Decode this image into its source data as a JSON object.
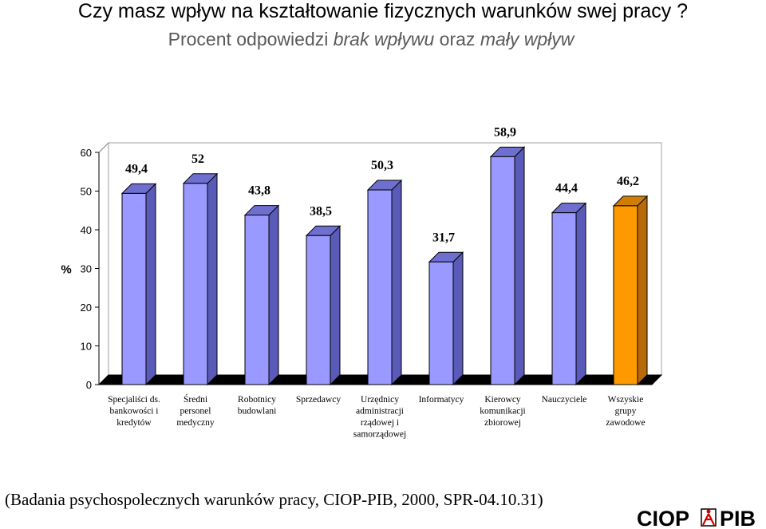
{
  "header": {
    "title": "Czy masz wpływ na kształtowanie fizycznych warunków swej pracy ?",
    "subtitle_prefix": "Procent odpowiedzi ",
    "subtitle_em1": "brak wpływu",
    "subtitle_mid": " oraz ",
    "subtitle_em2": "mały wpływ"
  },
  "chart_data": {
    "type": "bar",
    "title": "Czy masz wpływ na kształtowanie fizycznych warunków swej pracy ?",
    "subtitle": "Procent odpowiedzi brak wpływu oraz mały wpływ",
    "ylabel": "%",
    "xlabel": "",
    "ylim": [
      0,
      60
    ],
    "yticks": [
      0,
      10,
      20,
      30,
      40,
      50,
      60
    ],
    "grid": false,
    "legend": "none",
    "categories": [
      [
        "Specjaliści ds.",
        "bankowości i",
        "kredytów"
      ],
      [
        "Średni",
        "personel",
        "medyczny"
      ],
      [
        "Robotnicy",
        "budowlani"
      ],
      [
        "Sprzedawcy"
      ],
      [
        "Urzędnicy",
        "administracji",
        "rządowej i",
        "samorządowej"
      ],
      [
        "Informatycy"
      ],
      [
        "Kierowcy",
        "komunikacji",
        "zbiorowej"
      ],
      [
        "Nauczyciele"
      ],
      [
        "Wszyskie",
        "grupy",
        "zawodowe"
      ]
    ],
    "values": [
      49.4,
      52,
      43.8,
      38.5,
      50.3,
      31.7,
      58.9,
      44.4,
      46.2
    ],
    "value_labels": [
      "49,4",
      "52",
      "43,8",
      "38,5",
      "50,3",
      "31,7",
      "58,9",
      "44,4",
      "46,2"
    ],
    "colors": {
      "bar": "#9999ff",
      "bar_side": "#5a5ab8",
      "bar_top": "#6f6fd0",
      "highlight": "#ff9900",
      "highlight_side": "#b8690a",
      "highlight_top": "#d07d05"
    },
    "highlight_index": 8
  },
  "footer": {
    "source": "(Badania psychospolecznych warunków pracy, CIOP-PIB,  2000, SPR-04.10.31)"
  },
  "logo": {
    "left_text": "CIOP",
    "right_text": "PIB"
  }
}
